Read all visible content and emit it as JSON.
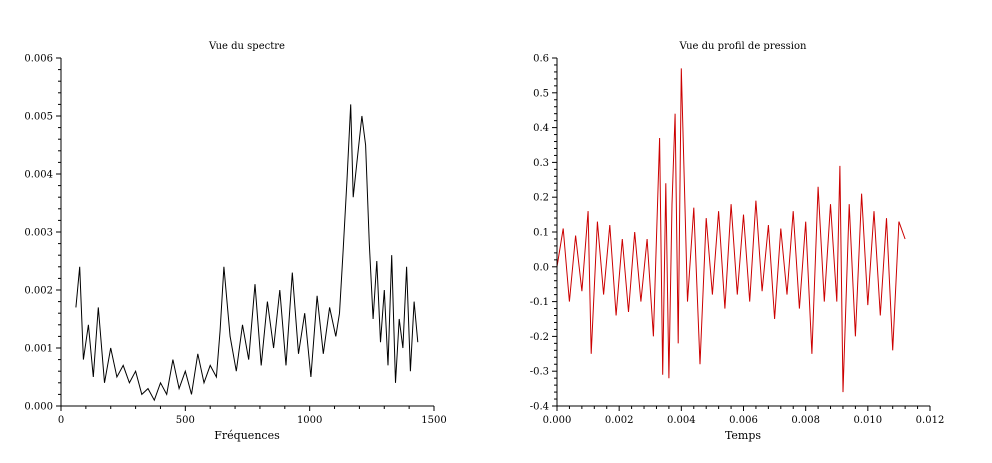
{
  "chart_data": [
    {
      "type": "line",
      "title": "Vue du spectre",
      "xlabel": "Fréquences",
      "ylabel": "",
      "xlim": [
        0,
        1500
      ],
      "ylim": [
        0,
        0.006
      ],
      "xticks": [
        "0",
        "500",
        "1000",
        "1500"
      ],
      "yticks": [
        "0.000",
        "0.001",
        "0.002",
        "0.003",
        "0.004",
        "0.005",
        "0.006"
      ],
      "color": "#000000",
      "series": [
        {
          "x": [
            60,
            75,
            90,
            110,
            130,
            150,
            175,
            200,
            225,
            250,
            275,
            300,
            325,
            350,
            375,
            400,
            425,
            450,
            475,
            500,
            525,
            550,
            575,
            600,
            625,
            640,
            655,
            680,
            705,
            730,
            755,
            780,
            805,
            830,
            855,
            880,
            905,
            930,
            955,
            980,
            1005,
            1030,
            1055,
            1080,
            1105,
            1120,
            1135,
            1150,
            1165,
            1175,
            1190,
            1210,
            1225,
            1240,
            1255,
            1270,
            1285,
            1300,
            1315,
            1330,
            1345,
            1360,
            1375,
            1390,
            1405,
            1420,
            1435
          ],
          "values": [
            0.0017,
            0.0024,
            0.0008,
            0.0014,
            0.0005,
            0.0017,
            0.0004,
            0.001,
            0.0005,
            0.0007,
            0.0004,
            0.0006,
            0.0002,
            0.0003,
            0.0001,
            0.0004,
            0.0002,
            0.0008,
            0.0003,
            0.0006,
            0.0002,
            0.0009,
            0.0004,
            0.0007,
            0.0005,
            0.0013,
            0.0024,
            0.0012,
            0.0006,
            0.0014,
            0.0008,
            0.0021,
            0.0007,
            0.0018,
            0.001,
            0.002,
            0.0007,
            0.0023,
            0.0009,
            0.0016,
            0.0005,
            0.0019,
            0.0009,
            0.0017,
            0.0012,
            0.0016,
            0.0027,
            0.0039,
            0.0052,
            0.0036,
            0.0042,
            0.005,
            0.0045,
            0.0028,
            0.0015,
            0.0025,
            0.0011,
            0.002,
            0.0007,
            0.0026,
            0.0004,
            0.0015,
            0.001,
            0.0024,
            0.0006,
            0.0018,
            0.0011
          ]
        }
      ]
    },
    {
      "type": "line",
      "title": "Vue du profil de pression",
      "xlabel": "Temps",
      "ylabel": "",
      "xlim": [
        0,
        0.012
      ],
      "ylim": [
        -0.4,
        0.6
      ],
      "xticks": [
        "0.000",
        "0.002",
        "0.004",
        "0.006",
        "0.008",
        "0.010",
        "0.012"
      ],
      "yticks": [
        "-0.4",
        "-0.3",
        "-0.2",
        "-0.1",
        "0.0",
        "0.1",
        "0.2",
        "0.3",
        "0.4",
        "0.5",
        "0.6"
      ],
      "color": "#cc0000",
      "series": [
        {
          "x": [
            0.0,
            0.0002,
            0.0004,
            0.0006,
            0.0008,
            0.001,
            0.0011,
            0.0013,
            0.0015,
            0.0017,
            0.0019,
            0.0021,
            0.0023,
            0.0025,
            0.0027,
            0.0029,
            0.0031,
            0.0033,
            0.0034,
            0.0035,
            0.0036,
            0.0037,
            0.0038,
            0.0039,
            0.004,
            0.0042,
            0.0044,
            0.0046,
            0.0048,
            0.005,
            0.0052,
            0.0054,
            0.0056,
            0.0058,
            0.006,
            0.0062,
            0.0064,
            0.0066,
            0.0068,
            0.007,
            0.0072,
            0.0074,
            0.0076,
            0.0078,
            0.008,
            0.0082,
            0.0084,
            0.0086,
            0.0088,
            0.009,
            0.0091,
            0.0092,
            0.0094,
            0.0096,
            0.0098,
            0.01,
            0.0102,
            0.0104,
            0.0106,
            0.0108,
            0.011,
            0.0112
          ],
          "values": [
            0.0,
            0.11,
            -0.1,
            0.09,
            -0.07,
            0.16,
            -0.25,
            0.13,
            -0.08,
            0.12,
            -0.14,
            0.08,
            -0.13,
            0.1,
            -0.1,
            0.08,
            -0.2,
            0.37,
            -0.31,
            0.24,
            -0.32,
            0.18,
            0.44,
            -0.22,
            0.57,
            -0.1,
            0.17,
            -0.28,
            0.14,
            -0.08,
            0.16,
            -0.12,
            0.18,
            -0.08,
            0.15,
            -0.1,
            0.19,
            -0.07,
            0.12,
            -0.15,
            0.11,
            -0.08,
            0.16,
            -0.12,
            0.13,
            -0.25,
            0.23,
            -0.1,
            0.18,
            -0.1,
            0.29,
            -0.36,
            0.18,
            -0.2,
            0.21,
            -0.11,
            0.16,
            -0.14,
            0.14,
            -0.24,
            0.13,
            0.08
          ]
        }
      ]
    }
  ]
}
